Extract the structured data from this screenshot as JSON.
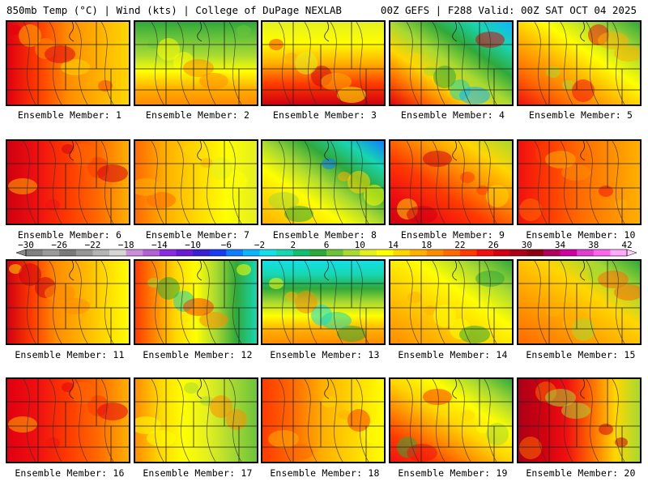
{
  "header": {
    "left": "850mb Temp (°C) | Wind (kts) | College of DuPage NEXLAB",
    "right": "00Z GEFS | F288 Valid: 00Z SAT OCT 04 2025"
  },
  "colorbar": {
    "labels": [
      "−30",
      "−26",
      "−22",
      "−18",
      "−14",
      "−10",
      "−6",
      "−2",
      "2",
      "6",
      "10",
      "14",
      "18",
      "22",
      "26",
      "30",
      "34",
      "38",
      "42"
    ],
    "colors": [
      "#808080",
      "#9a9a9a",
      "#7a7a7a",
      "#969696",
      "#b4b4b4",
      "#d6d6d6",
      "#cc8edb",
      "#b35fd6",
      "#8a2be2",
      "#6a1ad0",
      "#3a1fd0",
      "#1a3cf0",
      "#0f7dff",
      "#0fb4ff",
      "#13e0e8",
      "#17d6b0",
      "#10c070",
      "#2fa93a",
      "#6cc43a",
      "#a7d932",
      "#e3ef20",
      "#ffff00",
      "#ffd700",
      "#ffb000",
      "#ff8c00",
      "#ff6a00",
      "#ff3a00",
      "#f01010",
      "#d00010",
      "#aa0018",
      "#8a0010",
      "#b00060",
      "#d000a0",
      "#e040d0",
      "#ff66ee",
      "#ffaaf8"
    ]
  },
  "members": [
    {
      "label": "Ensemble Member: 1",
      "palette": [
        "#e00010",
        "#ff3a00",
        "#ff8c00",
        "#ffb000",
        "#ffd700"
      ],
      "dir": "lr"
    },
    {
      "label": "Ensemble Member: 2",
      "palette": [
        "#2fa93a",
        "#6cc43a",
        "#a7d932",
        "#ffff00",
        "#ffb000",
        "#ff8c00"
      ],
      "dir": "tb"
    },
    {
      "label": "Ensemble Member: 3",
      "palette": [
        "#e3ef20",
        "#ffff00",
        "#ffb000",
        "#ff3a00",
        "#d00010"
      ],
      "dir": "tb"
    },
    {
      "label": "Ensemble Member: 4",
      "palette": [
        "#e00010",
        "#ff6a00",
        "#ffd700",
        "#a7d932",
        "#2fa93a",
        "#17d6b0",
        "#0fb4ff"
      ],
      "dir": "diag"
    },
    {
      "label": "Ensemble Member: 5",
      "palette": [
        "#f01010",
        "#ff6a00",
        "#ffb000",
        "#ffff00",
        "#a7d932",
        "#2fa93a"
      ],
      "dir": "diag"
    },
    {
      "label": "Ensemble Member: 6",
      "palette": [
        "#d00010",
        "#f01010",
        "#ff3a00",
        "#ff6a00",
        "#ffb000"
      ],
      "dir": "lr"
    },
    {
      "label": "Ensemble Member: 7",
      "palette": [
        "#ff6a00",
        "#ffb000",
        "#ffd700",
        "#ffff00",
        "#e3ef20"
      ],
      "dir": "lr"
    },
    {
      "label": "Ensemble Member: 8",
      "palette": [
        "#ffb000",
        "#ffd700",
        "#ffff00",
        "#a7d932",
        "#2fa93a",
        "#17d6b0",
        "#0f7dff"
      ],
      "dir": "diag"
    },
    {
      "label": "Ensemble Member: 9",
      "palette": [
        "#d00010",
        "#f01010",
        "#ff3a00",
        "#ff8c00",
        "#ffd700",
        "#a7d932"
      ],
      "dir": "diag"
    },
    {
      "label": "Ensemble Member: 10",
      "palette": [
        "#f01010",
        "#ff3a00",
        "#ff6a00",
        "#ff8c00",
        "#ffb000"
      ],
      "dir": "lr"
    },
    {
      "label": "Ensemble Member: 11",
      "palette": [
        "#d00010",
        "#ff3a00",
        "#ff8c00",
        "#ffb000",
        "#ffd700",
        "#ffff00"
      ],
      "dir": "lr"
    },
    {
      "label": "Ensemble Member: 12",
      "palette": [
        "#ff3a00",
        "#ff8c00",
        "#ffd700",
        "#ffff00",
        "#a7d932",
        "#2fa93a",
        "#17d6b0"
      ],
      "dir": "lr"
    },
    {
      "label": "Ensemble Member: 13",
      "palette": [
        "#13e0e8",
        "#17d6b0",
        "#2fa93a",
        "#a7d932",
        "#ffff00",
        "#ffb000",
        "#ff8c00"
      ],
      "dir": "tb"
    },
    {
      "label": "Ensemble Member: 14",
      "palette": [
        "#ff8c00",
        "#ffb000",
        "#ffd700",
        "#ffff00",
        "#a7d932",
        "#2fa93a"
      ],
      "dir": "diag"
    },
    {
      "label": "Ensemble Member: 15",
      "palette": [
        "#ff6a00",
        "#ff8c00",
        "#ffb000",
        "#ffd700",
        "#a7d932",
        "#2fa93a"
      ],
      "dir": "diag"
    },
    {
      "label": "Ensemble Member: 16",
      "palette": [
        "#e00010",
        "#f01010",
        "#ff3a00",
        "#ff6a00",
        "#ffb000"
      ],
      "dir": "lr"
    },
    {
      "label": "Ensemble Member: 17",
      "palette": [
        "#ff8c00",
        "#ffd700",
        "#ffff00",
        "#e3ef20",
        "#a7d932",
        "#6cc43a"
      ],
      "dir": "lr"
    },
    {
      "label": "Ensemble Member: 18",
      "palette": [
        "#ff3a00",
        "#ff6a00",
        "#ffb000",
        "#ffd700",
        "#ffff00"
      ],
      "dir": "lr"
    },
    {
      "label": "Ensemble Member: 19",
      "palette": [
        "#f01010",
        "#ff3a00",
        "#ff8c00",
        "#ffd700",
        "#ffff00",
        "#a7d932",
        "#2fa93a"
      ],
      "dir": "diag"
    },
    {
      "label": "Ensemble Member: 20",
      "palette": [
        "#aa0018",
        "#d00010",
        "#f01010",
        "#ff6a00",
        "#ffd700",
        "#a7d932"
      ],
      "dir": "lr"
    }
  ]
}
